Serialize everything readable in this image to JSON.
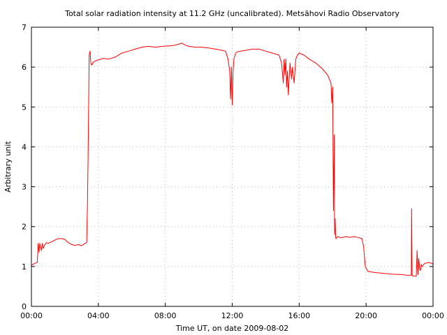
{
  "chart_data": {
    "type": "line",
    "title": "Total solar radiation intensity at 11.2 GHz (uncalibrated). Metsähovi Radio Observatory",
    "xlabel": "Time UT, on date 2009-08-02",
    "ylabel": "Arbitrary unit",
    "xlim": [
      0,
      24
    ],
    "ylim": [
      0,
      7
    ],
    "x_ticks": [
      {
        "value": 0,
        "label": "00:00"
      },
      {
        "value": 4,
        "label": "04:00"
      },
      {
        "value": 8,
        "label": "08:00"
      },
      {
        "value": 12,
        "label": "12:00"
      },
      {
        "value": 16,
        "label": "16:00"
      },
      {
        "value": 20,
        "label": "20:00"
      },
      {
        "value": 24,
        "label": "00:00"
      }
    ],
    "y_ticks": [
      {
        "value": 0,
        "label": "0"
      },
      {
        "value": 1,
        "label": "1"
      },
      {
        "value": 2,
        "label": "2"
      },
      {
        "value": 3,
        "label": "3"
      },
      {
        "value": 4,
        "label": "4"
      },
      {
        "value": 5,
        "label": "5"
      },
      {
        "value": 6,
        "label": "6"
      },
      {
        "value": 7,
        "label": "7"
      }
    ],
    "grid": true,
    "legend": "none",
    "series": [
      {
        "color": "#ff0000",
        "x": [
          0.0,
          0.2,
          0.35,
          0.4,
          0.45,
          0.5,
          0.6,
          0.65,
          0.7,
          0.8,
          0.9,
          1.0,
          1.2,
          1.4,
          1.6,
          1.8,
          2.0,
          2.2,
          2.4,
          2.6,
          2.8,
          3.0,
          3.2,
          3.3,
          3.35,
          3.4,
          3.45,
          3.5,
          3.55,
          3.6,
          3.7,
          3.8,
          4.0,
          4.3,
          4.6,
          5.0,
          5.4,
          5.8,
          6.2,
          6.6,
          7.0,
          7.4,
          7.8,
          8.2,
          8.6,
          9.0,
          9.2,
          9.4,
          9.8,
          10.2,
          10.6,
          11.0,
          11.4,
          11.6,
          11.75,
          11.85,
          11.9,
          11.95,
          12.0,
          12.05,
          12.1,
          12.2,
          12.3,
          12.5,
          12.8,
          13.2,
          13.6,
          14.0,
          14.4,
          14.8,
          14.95,
          15.05,
          15.1,
          15.15,
          15.2,
          15.25,
          15.3,
          15.35,
          15.45,
          15.55,
          15.6,
          15.7,
          15.8,
          15.9,
          16.0,
          16.3,
          16.6,
          17.0,
          17.4,
          17.7,
          17.9,
          17.95,
          18.0,
          18.05,
          18.1,
          18.12,
          18.15,
          18.18,
          18.2,
          18.25,
          18.3,
          18.5,
          18.8,
          19.0,
          19.3,
          19.6,
          19.75,
          19.85,
          19.95,
          20.1,
          20.5,
          21.0,
          21.5,
          22.0,
          22.5,
          22.7,
          22.72,
          22.75,
          22.8,
          23.0,
          23.05,
          23.1,
          23.15,
          23.2,
          23.25,
          23.3,
          23.35,
          23.5,
          23.8,
          24.0
        ],
        "values": [
          1.03,
          1.08,
          1.1,
          1.58,
          1.35,
          1.58,
          1.4,
          1.58,
          1.45,
          1.55,
          1.6,
          1.58,
          1.62,
          1.66,
          1.7,
          1.7,
          1.68,
          1.6,
          1.55,
          1.53,
          1.55,
          1.52,
          1.58,
          1.6,
          2.6,
          4.3,
          6.3,
          6.4,
          6.1,
          6.05,
          6.12,
          6.15,
          6.18,
          6.22,
          6.2,
          6.25,
          6.35,
          6.4,
          6.45,
          6.5,
          6.52,
          6.5,
          6.52,
          6.53,
          6.55,
          6.6,
          6.55,
          6.52,
          6.5,
          6.5,
          6.48,
          6.45,
          6.42,
          6.4,
          6.2,
          5.9,
          5.2,
          6.0,
          5.05,
          5.9,
          6.2,
          6.35,
          6.38,
          6.4,
          6.42,
          6.45,
          6.45,
          6.4,
          6.35,
          6.3,
          6.1,
          5.6,
          6.2,
          5.8,
          6.2,
          5.5,
          5.9,
          5.3,
          6.1,
          5.7,
          6.0,
          5.6,
          6.2,
          6.3,
          6.35,
          6.3,
          6.2,
          6.1,
          5.95,
          5.8,
          5.6,
          5.1,
          5.5,
          2.4,
          4.3,
          1.8,
          2.2,
          1.75,
          1.7,
          1.72,
          1.75,
          1.72,
          1.75,
          1.73,
          1.75,
          1.72,
          1.7,
          1.5,
          1.0,
          0.88,
          0.85,
          0.83,
          0.81,
          0.8,
          0.78,
          0.78,
          2.45,
          0.78,
          0.76,
          0.76,
          1.4,
          0.8,
          1.2,
          0.95,
          0.9,
          1.05,
          1.0,
          1.08,
          1.1,
          1.06
        ]
      }
    ]
  }
}
